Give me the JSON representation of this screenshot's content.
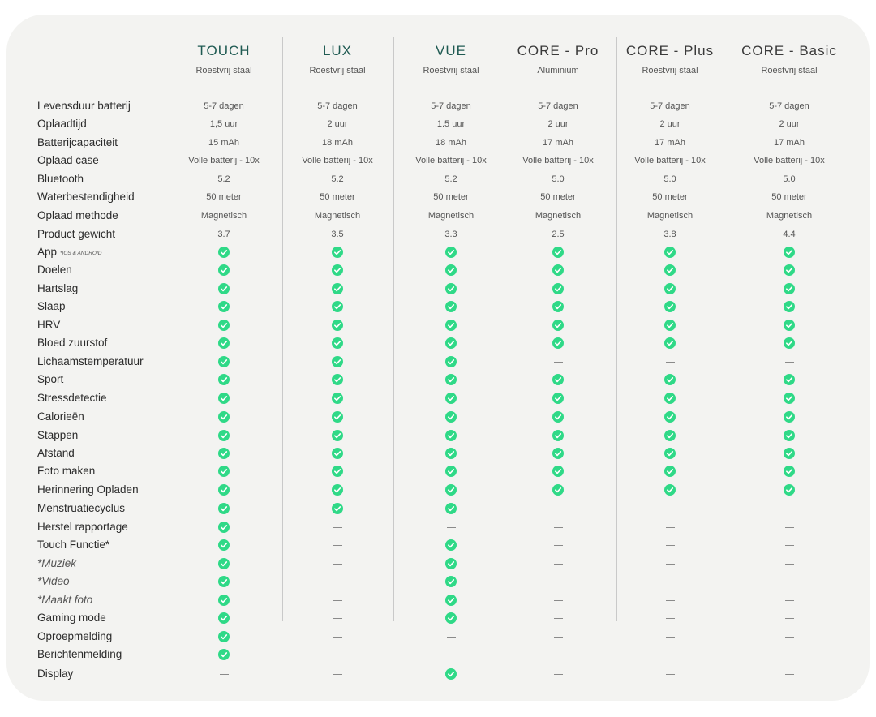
{
  "products": [
    {
      "name": "TOUCH",
      "material": "Roestvrij staal",
      "color": "#1f5a52"
    },
    {
      "name": "LUX",
      "material": "Roestvrij staal",
      "color": "#1f5a52"
    },
    {
      "name": "VUE",
      "material": "Roestvrij staal",
      "color": "#1f5a52"
    },
    {
      "name": "CORE - Pro",
      "material": "Aluminium",
      "color": "#3a3a3a"
    },
    {
      "name": "CORE - Plus",
      "material": "Roestvrij staal",
      "color": "#3a3a3a"
    },
    {
      "name": "CORE - Basic",
      "material": "Roestvrij staal",
      "color": "#3a3a3a"
    }
  ],
  "rows": [
    {
      "label": "Levensduur batterij",
      "values": [
        "5-7 dagen",
        "5-7 dagen",
        "5-7 dagen",
        "5-7 dagen",
        "5-7 dagen",
        "5-7 dagen"
      ]
    },
    {
      "label": "Oplaadtijd",
      "values": [
        "1,5 uur",
        "2 uur",
        "1.5 uur",
        "2 uur",
        "2 uur",
        "2 uur"
      ]
    },
    {
      "label": "Batterijcapaciteit",
      "values": [
        "15 mAh",
        "18 mAh",
        "18 mAh",
        "17 mAh",
        "17 mAh",
        "17 mAh"
      ]
    },
    {
      "label": "Oplaad case",
      "values": [
        "Volle batterij - 10x",
        "Volle batterij - 10x",
        "Volle batterij - 10x",
        "Volle batterij - 10x",
        "Volle batterij - 10x",
        "Volle batterij - 10x"
      ]
    },
    {
      "label": "Bluetooth",
      "values": [
        "5.2",
        "5.2",
        "5.2",
        "5.0",
        "5.0",
        "5.0"
      ]
    },
    {
      "label": "Waterbestendigheid",
      "values": [
        "50 meter",
        "50 meter",
        "50 meter",
        "50 meter",
        "50 meter",
        "50 meter"
      ]
    },
    {
      "label": "Oplaad methode",
      "values": [
        "Magnetisch",
        "Magnetisch",
        "Magnetisch",
        "Magnetisch",
        "Magnetisch",
        "Magnetisch"
      ]
    },
    {
      "label": "Product gewicht",
      "values": [
        "3.7",
        "3.5",
        "3.3",
        "2.5",
        "3.8",
        "4.4"
      ]
    },
    {
      "label": "App",
      "note": "*IOS & ANDROID",
      "values": [
        true,
        true,
        true,
        true,
        true,
        true
      ]
    },
    {
      "label": "Doelen",
      "values": [
        true,
        true,
        true,
        true,
        true,
        true
      ]
    },
    {
      "label": "Hartslag",
      "values": [
        true,
        true,
        true,
        true,
        true,
        true
      ]
    },
    {
      "label": "Slaap",
      "values": [
        true,
        true,
        true,
        true,
        true,
        true
      ]
    },
    {
      "label": "HRV",
      "values": [
        true,
        true,
        true,
        true,
        true,
        true
      ]
    },
    {
      "label": "Bloed zuurstof",
      "values": [
        true,
        true,
        true,
        true,
        true,
        true
      ]
    },
    {
      "label": "Lichaamstemperatuur",
      "values": [
        true,
        true,
        true,
        false,
        false,
        false
      ]
    },
    {
      "label": "Sport",
      "values": [
        true,
        true,
        true,
        true,
        true,
        true
      ]
    },
    {
      "label": "Stressdetectie",
      "values": [
        true,
        true,
        true,
        true,
        true,
        true
      ]
    },
    {
      "label": "Calorieën",
      "values": [
        true,
        true,
        true,
        true,
        true,
        true
      ]
    },
    {
      "label": "Stappen",
      "values": [
        true,
        true,
        true,
        true,
        true,
        true
      ]
    },
    {
      "label": "Afstand",
      "values": [
        true,
        true,
        true,
        true,
        true,
        true
      ]
    },
    {
      "label": "Foto maken",
      "values": [
        true,
        true,
        true,
        true,
        true,
        true
      ]
    },
    {
      "label": "Herinnering Opladen",
      "values": [
        true,
        true,
        true,
        true,
        true,
        true
      ]
    },
    {
      "label": "Menstruatiecyclus",
      "values": [
        true,
        true,
        true,
        false,
        false,
        false
      ]
    },
    {
      "label": "Herstel rapportage",
      "values": [
        true,
        false,
        false,
        false,
        false,
        false
      ]
    },
    {
      "label": "Touch Functie*",
      "values": [
        true,
        false,
        true,
        false,
        false,
        false
      ]
    },
    {
      "label": "*Muziek",
      "italic": true,
      "values": [
        true,
        false,
        true,
        false,
        false,
        false
      ]
    },
    {
      "label": "*Video",
      "italic": true,
      "values": [
        true,
        false,
        true,
        false,
        false,
        false
      ]
    },
    {
      "label": "*Maakt foto",
      "italic": true,
      "values": [
        true,
        false,
        true,
        false,
        false,
        false
      ]
    },
    {
      "label": "Gaming mode",
      "values": [
        true,
        false,
        true,
        false,
        false,
        false
      ]
    },
    {
      "label": "Oproepmelding",
      "values": [
        true,
        false,
        false,
        false,
        false,
        false
      ]
    },
    {
      "label": "Berichtenmelding",
      "values": [
        true,
        false,
        false,
        false,
        false,
        false
      ]
    },
    {
      "label": "Display",
      "values": [
        false,
        false,
        true,
        false,
        false,
        false
      ]
    }
  ],
  "icons": {
    "check": "check-circle-icon",
    "none": "dash-icon"
  },
  "colors": {
    "check": "#2fd987",
    "dash": "#8a8a8a"
  }
}
